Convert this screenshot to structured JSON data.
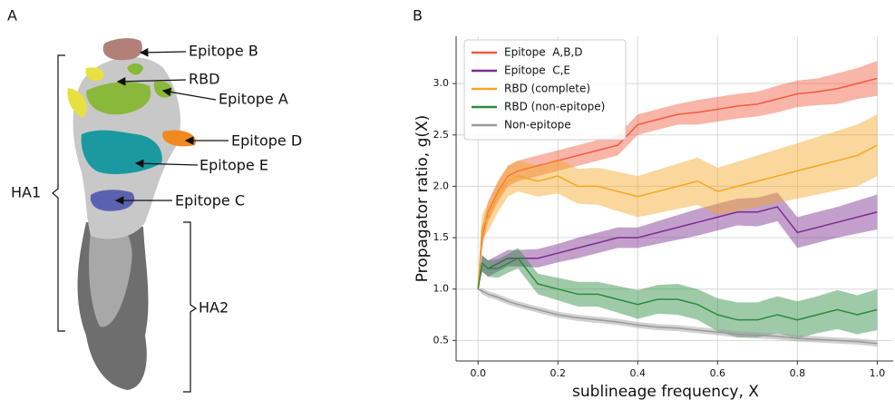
{
  "panel_a": {
    "label": "A",
    "annotations": [
      "Epitope B",
      "RBD",
      "Epitope A",
      "Epitope D",
      "Epitope E",
      "Epitope C"
    ],
    "ha1": "HA1",
    "ha2": "HA2"
  },
  "panel_b_label": "B",
  "chart_data": {
    "type": "line",
    "x_label": "sublineage frequency, X",
    "y_label": "Propagator ratio, g(X)",
    "xlim": [
      -0.055,
      1.04
    ],
    "ylim": [
      0.3,
      3.46
    ],
    "xticks": [
      {
        "value": 0,
        "label": "0.0"
      },
      0.2,
      0.4,
      0.6,
      0.8,
      {
        "value": 1,
        "label": "1.0"
      }
    ],
    "yticks": [
      0.5,
      {
        "value": 1,
        "label": "1.0"
      },
      1.5,
      {
        "value": 2,
        "label": "2.0"
      },
      2.5,
      {
        "value": 3,
        "label": "3.0"
      }
    ],
    "grid": true,
    "legend": "upper-left",
    "x": [
      0,
      0.01,
      0.025,
      0.05,
      0.075,
      0.1,
      0.15,
      0.2,
      0.25,
      0.3,
      0.35,
      0.4,
      0.45,
      0.5,
      0.55,
      0.6,
      0.65,
      0.7,
      0.75,
      0.8,
      0.85,
      0.9,
      0.95,
      1.0
    ],
    "series": [
      {
        "name": "Epitope  A,B,D",
        "color": "#f05a3e",
        "values": [
          1.0,
          1.5,
          1.75,
          1.95,
          2.1,
          2.15,
          2.2,
          2.25,
          2.3,
          2.35,
          2.4,
          2.6,
          2.65,
          2.7,
          2.72,
          2.75,
          2.78,
          2.8,
          2.85,
          2.9,
          2.92,
          2.95,
          3.0,
          3.05
        ],
        "upper": [
          1.0,
          1.6,
          1.85,
          2.05,
          2.2,
          2.25,
          2.3,
          2.35,
          2.4,
          2.45,
          2.5,
          2.7,
          2.75,
          2.8,
          2.84,
          2.87,
          2.9,
          2.92,
          2.98,
          3.03,
          3.05,
          3.1,
          3.15,
          3.22
        ],
        "lower": [
          1.0,
          1.4,
          1.65,
          1.85,
          2.0,
          2.05,
          2.1,
          2.15,
          2.2,
          2.25,
          2.3,
          2.5,
          2.55,
          2.6,
          2.6,
          2.63,
          2.66,
          2.68,
          2.72,
          2.77,
          2.79,
          2.8,
          2.85,
          2.88
        ]
      },
      {
        "name": "Epitope  C,E",
        "color": "#7b2d8e",
        "values": [
          1.0,
          1.25,
          1.2,
          1.25,
          1.3,
          1.3,
          1.3,
          1.35,
          1.4,
          1.45,
          1.5,
          1.5,
          1.55,
          1.6,
          1.65,
          1.7,
          1.75,
          1.75,
          1.8,
          1.55,
          1.6,
          1.65,
          1.7,
          1.75
        ],
        "upper": [
          1.0,
          1.33,
          1.28,
          1.33,
          1.38,
          1.38,
          1.39,
          1.44,
          1.5,
          1.55,
          1.6,
          1.6,
          1.66,
          1.72,
          1.78,
          1.83,
          1.88,
          1.89,
          1.94,
          1.7,
          1.75,
          1.8,
          1.86,
          1.92
        ],
        "lower": [
          1.0,
          1.17,
          1.12,
          1.17,
          1.22,
          1.22,
          1.21,
          1.26,
          1.3,
          1.35,
          1.4,
          1.4,
          1.44,
          1.48,
          1.52,
          1.57,
          1.62,
          1.61,
          1.66,
          1.4,
          1.45,
          1.5,
          1.54,
          1.58
        ]
      },
      {
        "name": "RBD (complete)",
        "color": "#f5a623",
        "values": [
          1.0,
          1.6,
          1.7,
          1.9,
          2.05,
          2.1,
          2.05,
          2.1,
          2.0,
          2.0,
          1.95,
          1.9,
          1.95,
          2.0,
          2.05,
          1.95,
          2.0,
          2.05,
          2.1,
          2.15,
          2.2,
          2.25,
          2.3,
          2.4
        ],
        "upper": [
          1.0,
          1.72,
          1.84,
          2.05,
          2.2,
          2.25,
          2.2,
          2.27,
          2.17,
          2.18,
          2.14,
          2.1,
          2.16,
          2.22,
          2.28,
          2.18,
          2.24,
          2.3,
          2.36,
          2.42,
          2.48,
          2.54,
          2.6,
          2.7
        ],
        "lower": [
          1.0,
          1.48,
          1.56,
          1.75,
          1.9,
          1.95,
          1.9,
          1.93,
          1.83,
          1.82,
          1.76,
          1.7,
          1.74,
          1.78,
          1.82,
          1.72,
          1.76,
          1.8,
          1.84,
          1.88,
          1.92,
          1.96,
          2.0,
          2.1
        ]
      },
      {
        "name": "RBD (non-epitope)",
        "color": "#2a8a3e",
        "values": [
          1.0,
          1.25,
          1.2,
          1.2,
          1.25,
          1.3,
          1.05,
          1.0,
          0.95,
          0.95,
          0.9,
          0.85,
          0.9,
          0.9,
          0.85,
          0.75,
          0.7,
          0.7,
          0.75,
          0.7,
          0.75,
          0.8,
          0.75,
          0.8
        ],
        "upper": [
          1.0,
          1.33,
          1.28,
          1.29,
          1.34,
          1.4,
          1.15,
          1.11,
          1.07,
          1.07,
          1.03,
          0.99,
          1.04,
          1.05,
          1.0,
          0.91,
          0.87,
          0.87,
          0.93,
          0.88,
          0.93,
          0.99,
          0.94,
          1.0
        ],
        "lower": [
          1.0,
          1.17,
          1.12,
          1.11,
          1.16,
          1.2,
          0.95,
          0.89,
          0.83,
          0.83,
          0.77,
          0.71,
          0.76,
          0.75,
          0.7,
          0.59,
          0.53,
          0.53,
          0.57,
          0.52,
          0.57,
          0.61,
          0.56,
          0.6
        ]
      },
      {
        "name": "Non-epitope",
        "color": "#9a9a9a",
        "values": [
          1.0,
          0.98,
          0.95,
          0.92,
          0.88,
          0.85,
          0.8,
          0.75,
          0.72,
          0.7,
          0.68,
          0.65,
          0.63,
          0.62,
          0.6,
          0.58,
          0.56,
          0.55,
          0.54,
          0.52,
          0.51,
          0.5,
          0.49,
          0.47
        ],
        "upper": [
          1.0,
          1.01,
          0.98,
          0.95,
          0.91,
          0.88,
          0.83,
          0.78,
          0.75,
          0.73,
          0.71,
          0.68,
          0.66,
          0.65,
          0.63,
          0.61,
          0.59,
          0.58,
          0.57,
          0.55,
          0.54,
          0.53,
          0.52,
          0.5
        ],
        "lower": [
          1.0,
          0.95,
          0.92,
          0.89,
          0.85,
          0.82,
          0.77,
          0.72,
          0.69,
          0.67,
          0.65,
          0.62,
          0.6,
          0.59,
          0.57,
          0.55,
          0.53,
          0.52,
          0.51,
          0.49,
          0.48,
          0.47,
          0.46,
          0.44
        ]
      }
    ]
  }
}
